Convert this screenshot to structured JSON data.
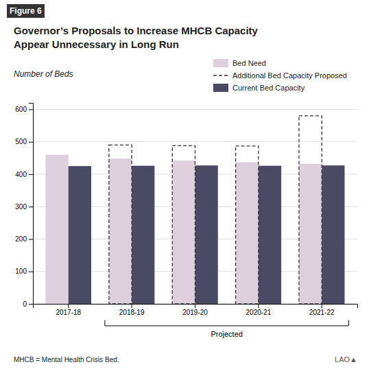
{
  "chart_data": {
    "type": "bar",
    "figure_label": "Figure 6",
    "title": "Governor’s Proposals to Increase MHCB Capacity\nAppear Unnecessary in Long Run",
    "subtitle": "Number of Beds",
    "footnote": "MHCB = Mental Health Crisis Bed.",
    "logo": "LAO▲",
    "categories": [
      "2017-18",
      "2018-19",
      "2019-20",
      "2020-21",
      "2021-22"
    ],
    "series": [
      {
        "name": "Bed Need",
        "color": "#ddd0dc",
        "values": [
          460,
          448,
          442,
          437,
          432
        ]
      },
      {
        "name": "Additional Bed Capacity Proposed",
        "color": "#333333",
        "line_style": "dashed",
        "values": [
          null,
          490,
          488,
          487,
          580
        ]
      },
      {
        "name": "Current Bed Capacity",
        "color": "#4a4a65",
        "values": [
          425,
          426,
          427,
          426,
          427
        ]
      }
    ],
    "annotations": [
      {
        "text": "Projected",
        "from": "2018-19",
        "to": "2021-22"
      }
    ],
    "ylim": [
      0,
      620
    ],
    "yticks": [
      0,
      100,
      200,
      300,
      400,
      500,
      600
    ],
    "grid": true,
    "legend": "upper right"
  }
}
